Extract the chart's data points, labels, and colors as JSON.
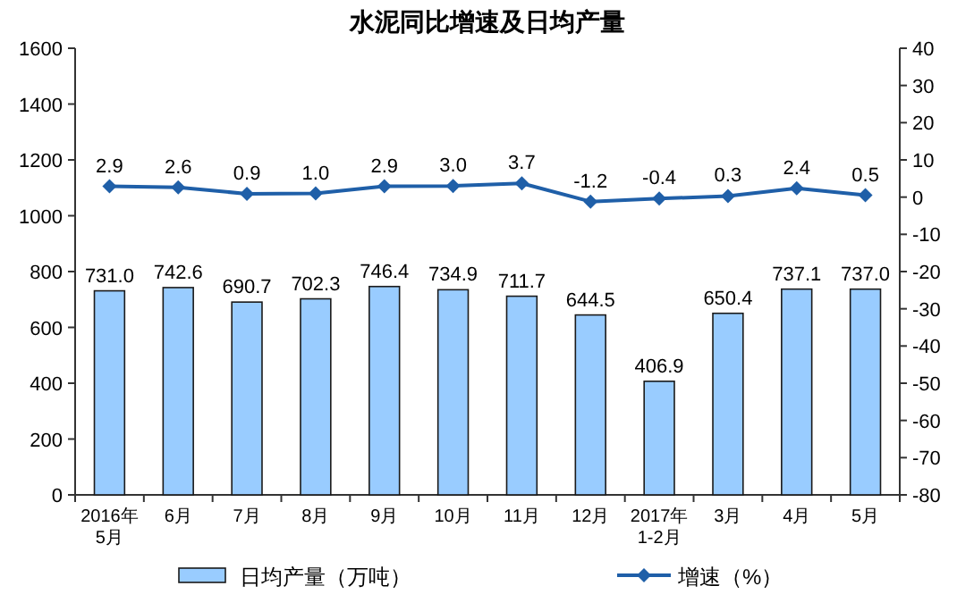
{
  "chart_data": {
    "type": "bar",
    "title": "水泥同比增速及日均产量",
    "categories": [
      "2016年\n5月",
      "6月",
      "7月",
      "8月",
      "9月",
      "10月",
      "11月",
      "12月",
      "2017年\n1-2月",
      "3月",
      "4月",
      "5月"
    ],
    "series": [
      {
        "name": "日均产量（万吨）",
        "color": "#99ccff",
        "values": [
          731.0,
          742.6,
          690.7,
          702.3,
          746.4,
          734.9,
          711.7,
          644.5,
          406.9,
          650.4,
          737.1,
          737.0
        ],
        "value_labels": [
          "731.0",
          "742.6",
          "690.7",
          "702.3",
          "746.4",
          "734.9",
          "711.7",
          "644.5",
          "406.9",
          "650.4",
          "737.1",
          "737.0"
        ]
      },
      {
        "name": "增速（%）",
        "type": "line",
        "axis": "y2",
        "color": "#1f5fa8",
        "values": [
          2.9,
          2.6,
          0.9,
          1.0,
          2.9,
          3.0,
          3.7,
          -1.2,
          -0.4,
          0.3,
          2.4,
          0.5
        ],
        "value_labels": [
          "2.9",
          "2.6",
          "0.9",
          "1.0",
          "2.9",
          "3.0",
          "3.7",
          "-1.2",
          "-0.4",
          "0.3",
          "2.4",
          "0.5"
        ]
      }
    ],
    "ylim": [
      0,
      1600
    ],
    "yticks": [
      0,
      200,
      400,
      600,
      800,
      1000,
      1200,
      1400,
      1600
    ],
    "y2lim": [
      -80,
      40
    ],
    "y2ticks": [
      -80,
      -70,
      -60,
      -50,
      -40,
      -30,
      -20,
      -10,
      0,
      10,
      20,
      30,
      40
    ],
    "marker": "diamond",
    "legend": "bottom",
    "grid": false
  }
}
